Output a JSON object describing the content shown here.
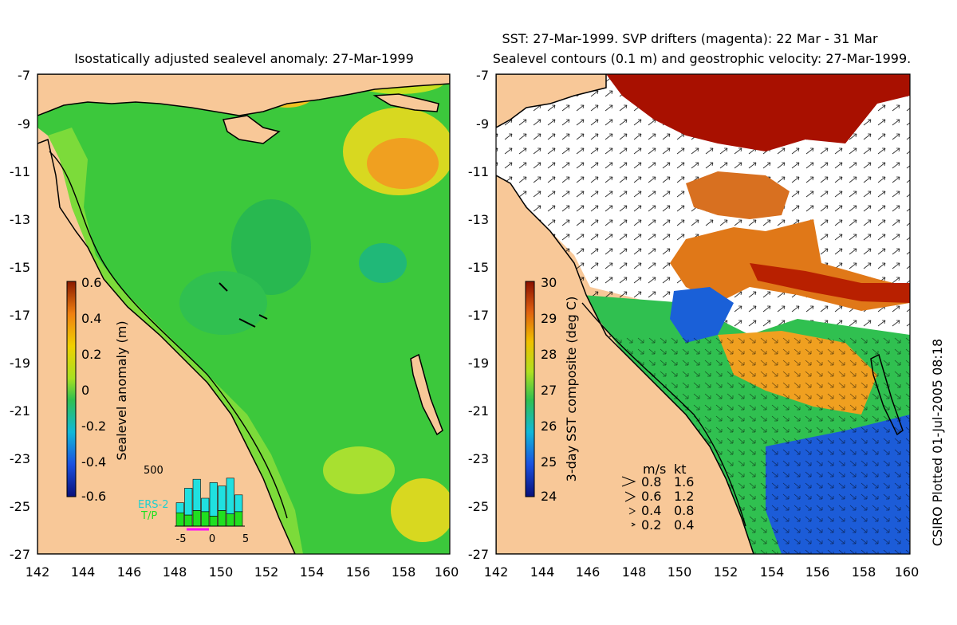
{
  "left_panel": {
    "title": "Isostatically adjusted sealevel anomaly: 27-Mar-1999",
    "y_ticks": [
      "-7",
      "-9",
      "-11",
      "-13",
      "-15",
      "-17",
      "-19",
      "-21",
      "-23",
      "-25",
      "-27"
    ],
    "x_ticks": [
      "142",
      "144",
      "146",
      "148",
      "150",
      "152",
      "154",
      "156",
      "158",
      "160"
    ],
    "colorbar": {
      "label": "Sealevel anomaly (m)",
      "ticks": [
        "0.6",
        "0.4",
        "0.2",
        "0",
        "-0.2",
        "-0.4",
        "-0.6"
      ]
    },
    "inset": {
      "max_label": "500",
      "legend": [
        "ERS-2",
        "T/P"
      ],
      "x_ticks": [
        "-5",
        "0",
        "5"
      ],
      "ers2_counts": [
        90,
        240,
        280,
        120,
        300,
        220,
        320,
        150
      ],
      "tp_counts": [
        120,
        100,
        140,
        130,
        90,
        140,
        110,
        130
      ]
    }
  },
  "right_panel": {
    "title_line1": "SST: 27-Mar-1999. SVP drifters (magenta): 22 Mar - 31 Mar",
    "title_line2": "Sealevel contours (0.1 m) and geostrophic velocity: 27-Mar-1999.",
    "y_ticks": [
      "-7",
      "-9",
      "-11",
      "-13",
      "-15",
      "-17",
      "-19",
      "-21",
      "-23",
      "-25",
      "-27"
    ],
    "x_ticks": [
      "142",
      "144",
      "146",
      "148",
      "150",
      "152",
      "154",
      "156",
      "158",
      "160"
    ],
    "colorbar": {
      "label": "3-day SST composite (deg C)",
      "ticks": [
        "30",
        "29",
        "28",
        "27",
        "26",
        "25",
        "24"
      ]
    },
    "velocity_legend": {
      "header": [
        "m/s",
        "kt"
      ],
      "rows": [
        [
          "0.8",
          "1.6"
        ],
        [
          "0.6",
          "1.2"
        ],
        [
          "0.4",
          "0.8"
        ],
        [
          "0.2",
          "0.4"
        ]
      ]
    }
  },
  "credit": "CSIRO Plotted 01-Jul-2005 08:18",
  "colors": {
    "land": "#f8c898",
    "cloud": "#ffffff",
    "ocean_anomaly": "#3cc83c",
    "warm": "#d86a10",
    "hot": "#a81000"
  }
}
